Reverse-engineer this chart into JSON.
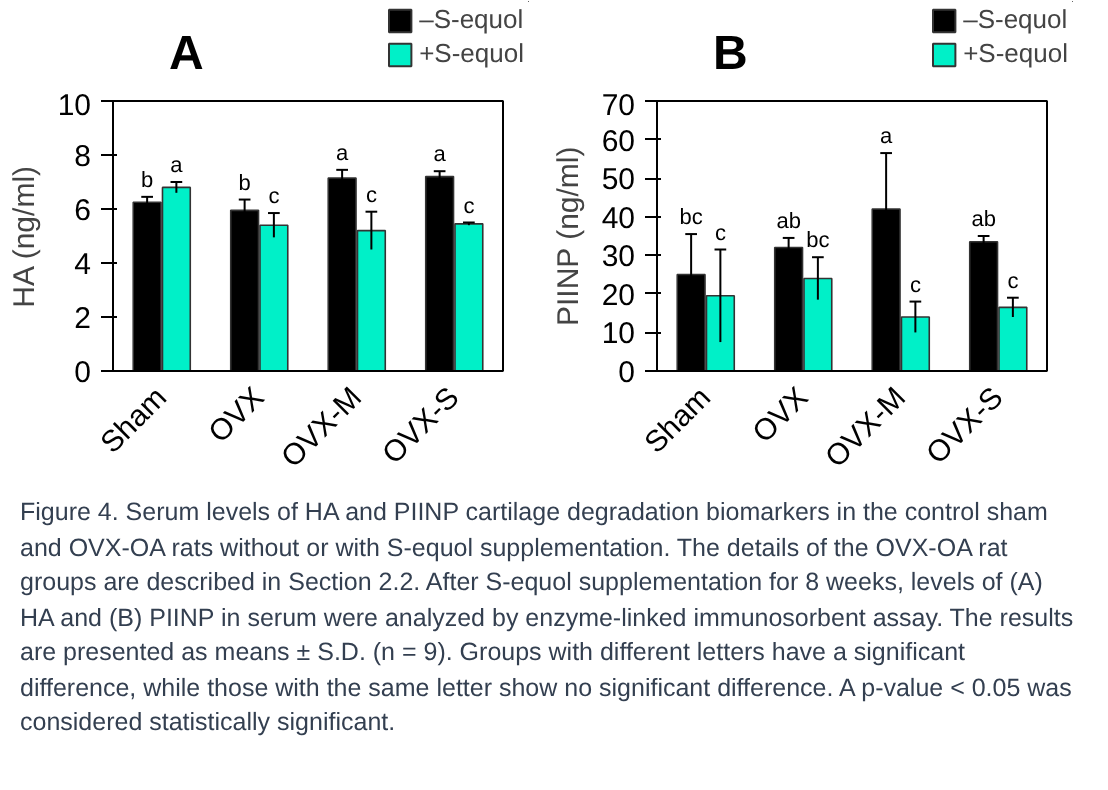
{
  "chart_data": [
    {
      "type": "bar",
      "title": "A",
      "ylabel": "HA (ng/ml)",
      "categories": [
        "Sham",
        "OVX",
        "OVX-M",
        "OVX-S"
      ],
      "ylim": [
        0,
        10
      ],
      "yticks": [
        0,
        2,
        4,
        6,
        8,
        10
      ],
      "grid": false,
      "legend": "top right",
      "series": [
        {
          "name": "–S-equol",
          "color": "#000000",
          "values": [
            6.25,
            5.95,
            7.15,
            7.2
          ],
          "errors": [
            0.2,
            0.4,
            0.3,
            0.2
          ],
          "value_labels": [
            "b",
            "b",
            "a",
            "a"
          ]
        },
        {
          "name": "+S-equol",
          "color": "#00f0c8",
          "values": [
            6.8,
            5.4,
            5.2,
            5.45
          ],
          "errors": [
            0.2,
            0.45,
            0.7,
            0.05
          ],
          "value_labels": [
            "a",
            "c",
            "c",
            "c"
          ]
        }
      ]
    },
    {
      "type": "bar",
      "title": "B",
      "ylabel": "PIINP (ng/ml)",
      "categories": [
        "Sham",
        "OVX",
        "OVX-M",
        "OVX-S"
      ],
      "ylim": [
        0,
        70
      ],
      "yticks": [
        0,
        10,
        20,
        30,
        40,
        50,
        60,
        70
      ],
      "grid": false,
      "legend": "top right",
      "annotations": [
        "Figure 4. Serum levels of HA and PIINP cartilage degradation biomarkers in the control sham and OVX-OA rats without or with S-equol supplementation. The details of the OVX-OA rat groups are described in Section 2.2. After S-equol supplementation for 8 weeks, levels of (A) HA and (B) PIINP in serum were analyzed by enzyme-linked immunosorbent assay. The results are presented as means ± S.D. (n = 9). Groups with different letters have a significant difference, while those with the same letter show no significant difference. A p-value < 0.05 was considered statistically significant."
      ],
      "series": [
        {
          "name": "–S-equol",
          "color": "#000000",
          "values": [
            25,
            32,
            42,
            33.5
          ],
          "errors": [
            10.5,
            2.5,
            14.5,
            1.5
          ],
          "value_labels": [
            "bc",
            "ab",
            "a",
            "ab"
          ]
        },
        {
          "name": "+S-equol",
          "color": "#00f0c8",
          "values": [
            19.5,
            24,
            14,
            16.5
          ],
          "errors": [
            12,
            5.5,
            4,
            2.5
          ],
          "value_labels": [
            "c",
            "bc",
            "c",
            "c"
          ]
        }
      ]
    }
  ]
}
